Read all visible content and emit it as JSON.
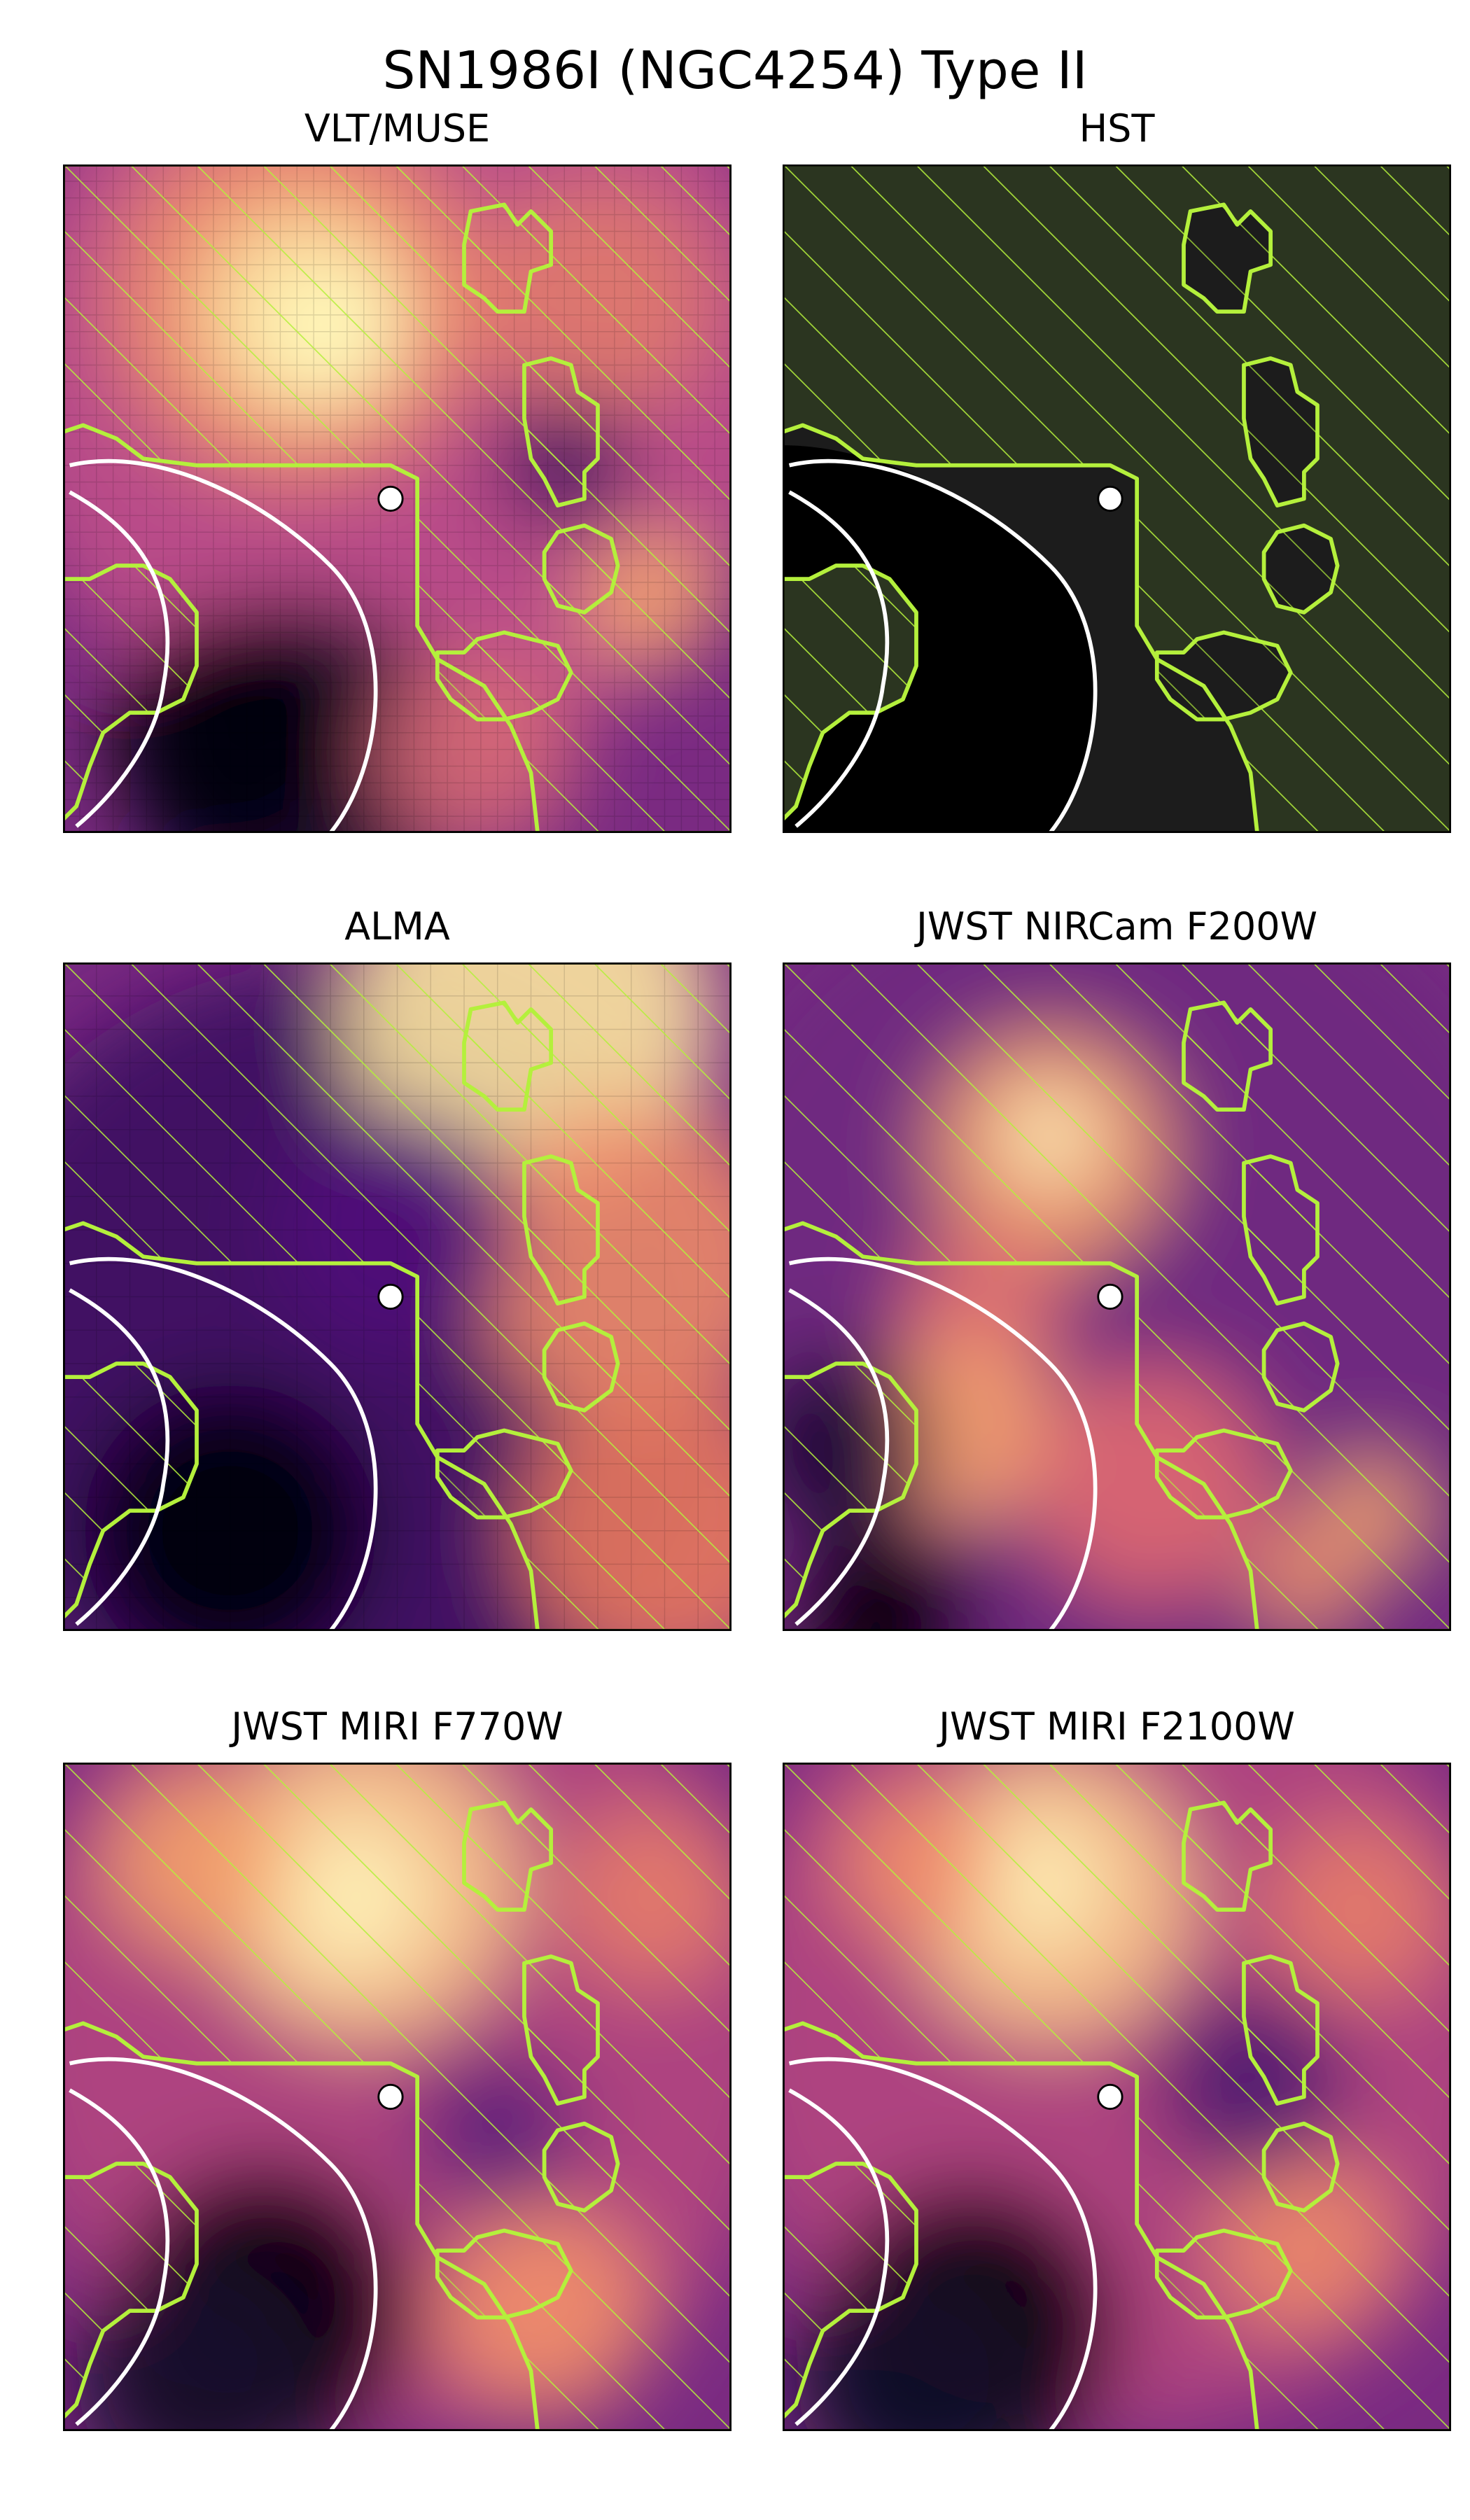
{
  "figure": {
    "title": "SN1986I (NGC4254) Type II"
  },
  "panels": [
    {
      "id": "muse",
      "title": "VLT/MUSE",
      "colormap": "magma",
      "pixelated": true
    },
    {
      "id": "hst",
      "title": "HST",
      "colormap": "dark",
      "pixelated": false
    },
    {
      "id": "alma",
      "title": "ALMA",
      "colormap": "magma",
      "pixelated": true
    },
    {
      "id": "nircam",
      "title": "JWST NIRCam F200W",
      "colormap": "magma",
      "pixelated": false
    },
    {
      "id": "f770w",
      "title": "JWST MIRI F770W",
      "colormap": "magma",
      "pixelated": false
    },
    {
      "id": "f2100w",
      "title": "JWST MIRI F2100W",
      "colormap": "magma",
      "pixelated": false
    }
  ],
  "colors": {
    "contour": "#b4f03c",
    "boundary": "#ffffff",
    "marker_fill": "#ffffff",
    "marker_edge": "#000000",
    "hst_background": "#1c1c1c",
    "hst_hatch_fill": "#2b3520"
  }
}
